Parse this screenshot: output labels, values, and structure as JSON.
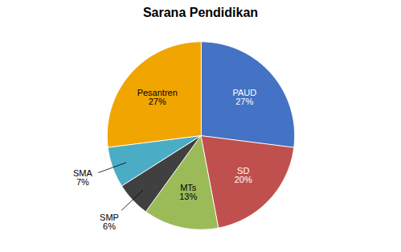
{
  "chart_data": {
    "type": "pie",
    "title": "Sarana Pendidikan",
    "categories": [
      "PAUD",
      "SD",
      "MTs",
      "SMP",
      "SMA",
      "Pesantren"
    ],
    "values": [
      27,
      20,
      13,
      6,
      7,
      27
    ],
    "value_labels": [
      "27%",
      "20%",
      "13%",
      "6%",
      "7%",
      "27%"
    ],
    "colors": [
      "#4472C4",
      "#C0504D",
      "#9BBB59",
      "#404040",
      "#4BACC6",
      "#F0A500"
    ],
    "data_labels": true
  }
}
